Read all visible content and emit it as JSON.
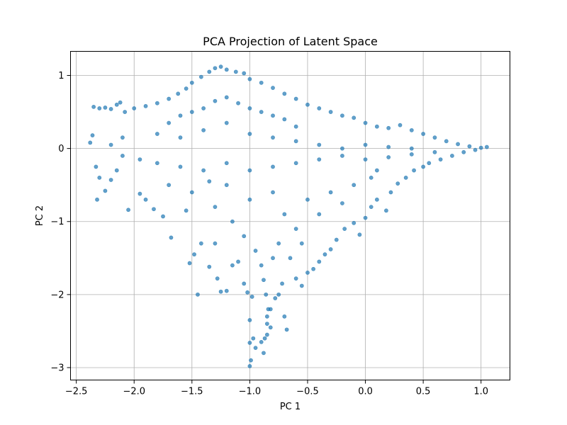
{
  "chart_data": {
    "type": "scatter",
    "title": "PCA Projection of Latent Space",
    "xlabel": "PC 1",
    "ylabel": "PC 2",
    "xlim": [
      -2.55,
      1.25
    ],
    "ylim": [
      -3.17,
      1.33
    ],
    "xticks": [
      -2.5,
      -2.0,
      -1.5,
      -1.0,
      -0.5,
      0.0,
      0.5,
      1.0
    ],
    "xtick_labels": [
      "−2.5",
      "−2.0",
      "−1.5",
      "−1.0",
      "−0.5",
      "0.0",
      "0.5",
      "1.0"
    ],
    "yticks": [
      -3,
      -2,
      -1,
      0,
      1
    ],
    "ytick_labels": [
      "−3",
      "−2",
      "−1",
      "0",
      "1"
    ],
    "grid": true,
    "marker_color": "#1f77b4",
    "marker_alpha": 0.7,
    "series": [
      {
        "points": [
          [
            -2.35,
            0.57
          ],
          [
            -2.3,
            0.55
          ],
          [
            -2.25,
            0.56
          ],
          [
            -2.2,
            0.54
          ],
          [
            -2.15,
            0.6
          ],
          [
            -2.12,
            0.63
          ],
          [
            -2.38,
            0.08
          ],
          [
            -2.36,
            0.18
          ],
          [
            -2.33,
            -0.25
          ],
          [
            -2.3,
            -0.4
          ],
          [
            -2.32,
            -0.7
          ],
          [
            -2.25,
            -0.58
          ],
          [
            -2.2,
            -0.43
          ],
          [
            -2.15,
            -0.3
          ],
          [
            -2.05,
            -0.84
          ],
          [
            -1.95,
            -0.62
          ],
          [
            -1.9,
            -0.7
          ],
          [
            -1.83,
            -0.83
          ],
          [
            -1.75,
            -0.93
          ],
          [
            -1.68,
            -1.22
          ],
          [
            -1.55,
            -0.85
          ],
          [
            -1.52,
            -1.57
          ],
          [
            -1.48,
            -1.45
          ],
          [
            -1.42,
            -1.3
          ],
          [
            -1.35,
            -1.62
          ],
          [
            -1.45,
            -2.0
          ],
          [
            -1.3,
            -1.3
          ],
          [
            -1.28,
            -1.78
          ],
          [
            -1.25,
            -1.96
          ],
          [
            -1.2,
            -1.95
          ],
          [
            -1.15,
            -1.6
          ],
          [
            -1.1,
            -1.55
          ],
          [
            -1.05,
            -1.85
          ],
          [
            -1.02,
            -1.97
          ],
          [
            -1.0,
            -2.35
          ],
          [
            -0.98,
            -2.03
          ],
          [
            -1.0,
            -2.66
          ],
          [
            -0.97,
            -2.6
          ],
          [
            -0.99,
            -2.9
          ],
          [
            -1.0,
            -2.98
          ],
          [
            -0.95,
            -2.73
          ],
          [
            -0.88,
            -2.8
          ],
          [
            -0.9,
            -2.65
          ],
          [
            -0.85,
            -2.55
          ],
          [
            -0.82,
            -2.45
          ],
          [
            -0.85,
            -2.3
          ],
          [
            -0.82,
            -2.2
          ],
          [
            -0.78,
            -2.05
          ],
          [
            -0.75,
            -2.0
          ],
          [
            -0.7,
            -2.3
          ],
          [
            -0.68,
            -2.48
          ],
          [
            -0.72,
            -1.85
          ],
          [
            -0.6,
            -1.78
          ],
          [
            -0.55,
            -1.88
          ],
          [
            -0.5,
            -1.7
          ],
          [
            -0.45,
            -1.65
          ],
          [
            -0.4,
            -1.55
          ],
          [
            -0.35,
            -1.45
          ],
          [
            -0.3,
            -1.38
          ],
          [
            -0.25,
            -1.25
          ],
          [
            -0.18,
            -1.1
          ],
          [
            -0.1,
            -1.02
          ],
          [
            -0.05,
            -1.18
          ],
          [
            0.0,
            -0.95
          ],
          [
            0.05,
            -0.8
          ],
          [
            0.1,
            -0.7
          ],
          [
            0.18,
            -0.85
          ],
          [
            0.22,
            -0.6
          ],
          [
            0.28,
            -0.48
          ],
          [
            0.35,
            -0.4
          ],
          [
            0.42,
            -0.3
          ],
          [
            0.5,
            -0.25
          ],
          [
            0.55,
            -0.2
          ],
          [
            0.65,
            -0.15
          ],
          [
            0.75,
            -0.1
          ],
          [
            0.85,
            -0.05
          ],
          [
            0.95,
            -0.02
          ],
          [
            1.05,
            0.02
          ],
          [
            1.0,
            0.01
          ],
          [
            0.9,
            0.03
          ],
          [
            0.8,
            0.06
          ],
          [
            0.7,
            0.1
          ],
          [
            0.6,
            0.15
          ],
          [
            0.5,
            0.2
          ],
          [
            0.4,
            0.25
          ],
          [
            0.3,
            0.32
          ],
          [
            0.2,
            0.28
          ],
          [
            0.1,
            0.3
          ],
          [
            0.0,
            0.35
          ],
          [
            -0.1,
            0.42
          ],
          [
            -0.2,
            0.45
          ],
          [
            -0.3,
            0.5
          ],
          [
            -0.4,
            0.55
          ],
          [
            -0.5,
            0.6
          ],
          [
            -0.6,
            0.68
          ],
          [
            -0.7,
            0.75
          ],
          [
            -0.8,
            0.83
          ],
          [
            -0.9,
            0.9
          ],
          [
            -1.0,
            0.95
          ],
          [
            -1.05,
            1.03
          ],
          [
            -1.12,
            1.05
          ],
          [
            -1.2,
            1.08
          ],
          [
            -1.25,
            1.12
          ],
          [
            -1.3,
            1.1
          ],
          [
            -1.35,
            1.05
          ],
          [
            -1.42,
            0.98
          ],
          [
            -1.5,
            0.9
          ],
          [
            -1.55,
            0.82
          ],
          [
            -1.62,
            0.75
          ],
          [
            -1.7,
            0.68
          ],
          [
            -1.8,
            0.62
          ],
          [
            -1.9,
            0.58
          ],
          [
            -2.0,
            0.55
          ],
          [
            -2.08,
            0.5
          ],
          [
            -1.7,
            0.35
          ],
          [
            -1.6,
            0.45
          ],
          [
            -1.5,
            0.5
          ],
          [
            -1.4,
            0.55
          ],
          [
            -1.3,
            0.65
          ],
          [
            -1.2,
            0.7
          ],
          [
            -1.1,
            0.62
          ],
          [
            -1.0,
            0.55
          ],
          [
            -0.9,
            0.5
          ],
          [
            -0.8,
            0.45
          ],
          [
            -0.7,
            0.4
          ],
          [
            -0.6,
            0.3
          ],
          [
            -1.8,
            0.2
          ],
          [
            -1.6,
            0.15
          ],
          [
            -1.4,
            0.25
          ],
          [
            -1.2,
            0.35
          ],
          [
            -1.0,
            0.2
          ],
          [
            -0.8,
            0.15
          ],
          [
            -0.6,
            0.1
          ],
          [
            -0.4,
            0.05
          ],
          [
            -0.2,
            0.0
          ],
          [
            0.0,
            0.05
          ],
          [
            0.2,
            0.02
          ],
          [
            0.4,
            0.0
          ],
          [
            -2.1,
            0.15
          ],
          [
            -2.2,
            0.05
          ],
          [
            -2.1,
            -0.1
          ],
          [
            -1.95,
            -0.15
          ],
          [
            -1.8,
            -0.2
          ],
          [
            -1.6,
            -0.25
          ],
          [
            -1.4,
            -0.3
          ],
          [
            -1.2,
            -0.2
          ],
          [
            -1.0,
            -0.3
          ],
          [
            -0.8,
            -0.25
          ],
          [
            -0.6,
            -0.2
          ],
          [
            -0.4,
            -0.15
          ],
          [
            -0.2,
            -0.1
          ],
          [
            0.0,
            -0.15
          ],
          [
            0.2,
            -0.12
          ],
          [
            0.4,
            -0.08
          ],
          [
            0.6,
            -0.05
          ],
          [
            -1.5,
            -0.6
          ],
          [
            -1.3,
            -0.8
          ],
          [
            -1.15,
            -1.0
          ],
          [
            -1.05,
            -1.2
          ],
          [
            -0.95,
            -1.4
          ],
          [
            -0.9,
            -1.6
          ],
          [
            -0.88,
            -1.8
          ],
          [
            -0.86,
            -2.0
          ],
          [
            -0.84,
            -2.2
          ],
          [
            -0.85,
            -2.4
          ],
          [
            -0.87,
            -2.6
          ],
          [
            -0.7,
            -0.9
          ],
          [
            -0.6,
            -1.1
          ],
          [
            -0.55,
            -1.3
          ],
          [
            -0.5,
            -0.7
          ],
          [
            -0.4,
            -0.9
          ],
          [
            -0.3,
            -0.6
          ],
          [
            -0.2,
            -0.75
          ],
          [
            -0.1,
            -0.5
          ],
          [
            0.05,
            -0.4
          ],
          [
            0.1,
            -0.3
          ],
          [
            -1.2,
            -0.5
          ],
          [
            -1.0,
            -0.7
          ],
          [
            -0.8,
            -0.6
          ],
          [
            -0.75,
            -1.3
          ],
          [
            -0.65,
            -1.5
          ],
          [
            -0.8,
            -1.5
          ],
          [
            -1.35,
            -0.45
          ],
          [
            -1.7,
            -0.5
          ]
        ]
      }
    ]
  }
}
